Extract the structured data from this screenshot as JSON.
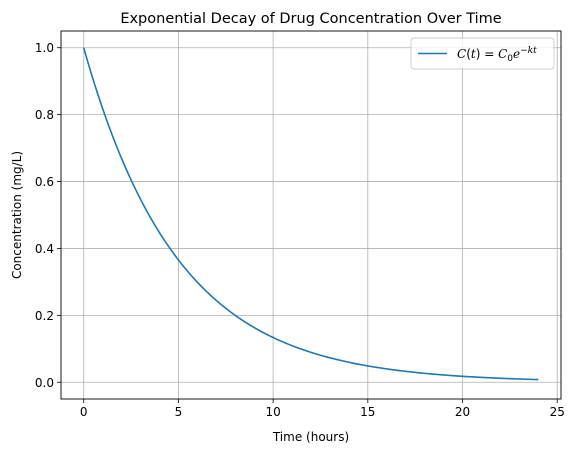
{
  "chart_data": {
    "type": "line",
    "title": "Exponential Decay of Drug Concentration Over Time",
    "xlabel": "Time (hours)",
    "ylabel": "Concentration (mg/L)",
    "xlim": [
      -1.2,
      25.2
    ],
    "ylim": [
      -0.05,
      1.05
    ],
    "xticks": [
      0,
      5,
      10,
      15,
      20,
      25
    ],
    "yticks": [
      0.0,
      0.2,
      0.4,
      0.6,
      0.8,
      1.0
    ],
    "xtick_labels": [
      "0",
      "5",
      "10",
      "15",
      "20",
      "25"
    ],
    "ytick_labels": [
      "0.0",
      "0.2",
      "0.4",
      "0.6",
      "0.8",
      "1.0"
    ],
    "grid": true,
    "legend_position": "top-right",
    "series": [
      {
        "name": "C(t) = C0 e^-kt",
        "color": "#1f77b4",
        "x": [
          0,
          1,
          2,
          3,
          4,
          5,
          6,
          7,
          8,
          9,
          10,
          11,
          12,
          13,
          14,
          15,
          16,
          17,
          18,
          19,
          20,
          21,
          22,
          23,
          24
        ],
        "y": [
          1.0,
          0.819,
          0.67,
          0.549,
          0.449,
          0.368,
          0.301,
          0.247,
          0.202,
          0.165,
          0.135,
          0.111,
          0.091,
          0.074,
          0.061,
          0.05,
          0.041,
          0.033,
          0.027,
          0.022,
          0.018,
          0.015,
          0.012,
          0.01,
          0.008
        ]
      }
    ]
  }
}
